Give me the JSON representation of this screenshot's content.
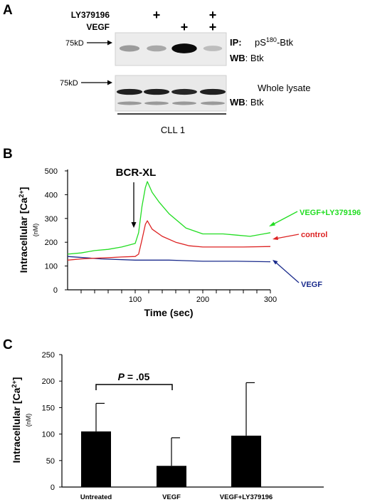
{
  "panel_a": {
    "letter": "A",
    "rows": [
      {
        "label": "LY379196",
        "marks": [
          "",
          "+",
          "",
          "+"
        ]
      },
      {
        "label": "VEGF",
        "marks": [
          "",
          "",
          "+",
          "+"
        ]
      }
    ],
    "top_blot": {
      "marker": "75kD",
      "ip_prefix": "IP:",
      "ip_text_pre": "pS",
      "ip_text_sup": "180",
      "ip_text_post": "-Btk",
      "wb_prefix": "WB",
      "wb_text": ": Btk",
      "band_intensity": [
        0.28,
        0.22,
        0.95,
        0.12
      ]
    },
    "bottom_blot": {
      "marker": "75kD",
      "title": "Whole lysate",
      "wb_prefix": "WB",
      "wb_text": ": Btk",
      "band_intensity": [
        0.85,
        0.85,
        0.82,
        0.85
      ]
    },
    "group_label": "CLL 1"
  },
  "panel_b": {
    "letter": "B",
    "annotation": "BCR-XL",
    "chart_data": {
      "type": "line",
      "xlabel": "Time (sec)",
      "ylabel": "Intracellular [Ca2+]",
      "ylabel_main": "Intracellular [Ca",
      "ylabel_sup": "2+",
      "ylabel_close": "]",
      "ylabel_unit": "(nM)",
      "xlim": [
        0,
        300
      ],
      "ylim": [
        0,
        500
      ],
      "xticks": [
        100,
        200,
        300
      ],
      "yticks": [
        0,
        100,
        200,
        300,
        400,
        500
      ],
      "annotation_x": 100,
      "series": [
        {
          "name": "VEGF+LY379196",
          "color": "#22dd22",
          "x": [
            0,
            20,
            40,
            60,
            80,
            100,
            105,
            110,
            115,
            118,
            125,
            135,
            150,
            175,
            200,
            230,
            250,
            270,
            290,
            300
          ],
          "y": [
            150,
            155,
            165,
            170,
            180,
            195,
            240,
            350,
            430,
            455,
            410,
            370,
            320,
            260,
            235,
            235,
            230,
            225,
            235,
            240
          ]
        },
        {
          "name": "control",
          "color": "#dd2222",
          "x": [
            0,
            20,
            40,
            60,
            80,
            100,
            105,
            110,
            115,
            118,
            125,
            140,
            160,
            180,
            200,
            230,
            260,
            300
          ],
          "y": [
            125,
            130,
            133,
            135,
            138,
            140,
            150,
            210,
            275,
            290,
            255,
            225,
            200,
            185,
            180,
            180,
            180,
            182
          ]
        },
        {
          "name": "VEGF",
          "color": "#1a2b8c",
          "x": [
            0,
            50,
            100,
            150,
            200,
            250,
            300
          ],
          "y": [
            140,
            130,
            125,
            125,
            120,
            120,
            118
          ]
        }
      ]
    }
  },
  "panel_c": {
    "letter": "C",
    "p_label": "P",
    "p_value": " = .05",
    "chart_data": {
      "type": "bar",
      "categories": [
        "Untreated",
        "VEGF",
        "VEGF+LY379196"
      ],
      "values": [
        105,
        40,
        97
      ],
      "errors": [
        53,
        53,
        100
      ],
      "ylabel": "Intracellular [Ca2+]",
      "ylabel_main": "Intracellular [Ca",
      "ylabel_sup": "2+",
      "ylabel_close": "]",
      "ylabel_unit": "(nM)",
      "ylim": [
        0,
        250
      ],
      "yticks": [
        0,
        50,
        100,
        150,
        200,
        250
      ]
    }
  },
  "colors": {
    "green": "#22dd22",
    "red": "#dd2222",
    "blue": "#1a2b8c"
  }
}
